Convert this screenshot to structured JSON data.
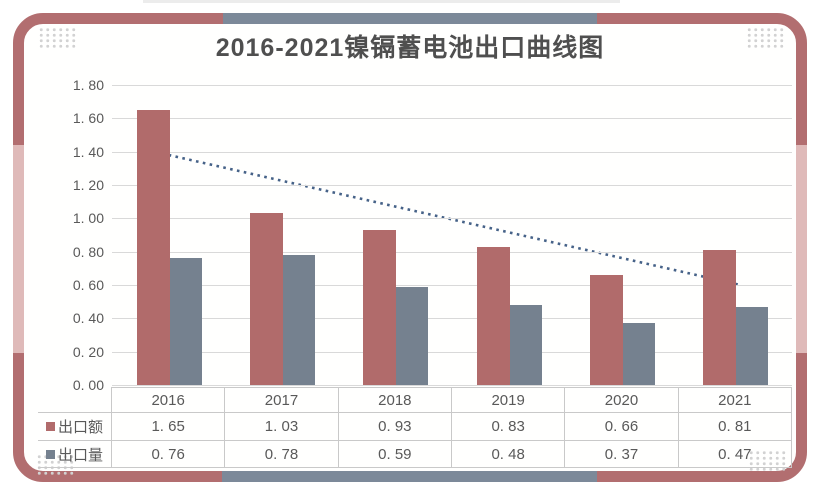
{
  "theme": {
    "border_red": "#b26e70",
    "border_pink": "#dfbab9",
    "border_gray": "#7c8999",
    "bar_red": "#b16b6b",
    "bar_gray": "#75818f",
    "trend_blue": "#466288",
    "grid_color": "#d9d9d9",
    "table_border": "#c9c9c9",
    "text_color": "#595959",
    "title_color": "#4f4f4f"
  },
  "chart_data": {
    "type": "bar",
    "title": "2016-2021镍镉蓄电池出口曲线图",
    "categories": [
      "2016",
      "2017",
      "2018",
      "2019",
      "2020",
      "2021"
    ],
    "series": [
      {
        "name": "出口额",
        "key": "export-value",
        "color": "#b16b6b",
        "values": [
          1.65,
          1.03,
          0.93,
          0.83,
          0.66,
          0.81
        ]
      },
      {
        "name": "出口量",
        "key": "export-volume",
        "color": "#75818f",
        "values": [
          0.76,
          0.78,
          0.59,
          0.48,
          0.37,
          0.47
        ]
      }
    ],
    "trendline": {
      "series": "出口额",
      "style": "dotted",
      "color": "#466288",
      "start_value": 1.38,
      "end_value": 0.6
    },
    "ylim": [
      0,
      1.8
    ],
    "ytick_step": 0.2,
    "ytick_labels": [
      "0. 00",
      "0. 20",
      "0. 40",
      "0. 60",
      "0. 80",
      "1. 00",
      "1. 20",
      "1. 40",
      "1. 60",
      "1. 80"
    ],
    "grid": true,
    "legend_position": "table-row-labels",
    "data_table": {
      "header_row": [
        "2016",
        "2017",
        "2018",
        "2019",
        "2020",
        "2021"
      ],
      "rows": [
        {
          "label": "出口额",
          "display_values": [
            "1. 65",
            "1. 03",
            "0. 93",
            "0. 83",
            "0. 66",
            "0. 81"
          ]
        },
        {
          "label": "出口量",
          "display_values": [
            "0. 76",
            "0. 78",
            "0. 59",
            "0. 48",
            "0. 37",
            "0. 47"
          ]
        }
      ]
    }
  }
}
